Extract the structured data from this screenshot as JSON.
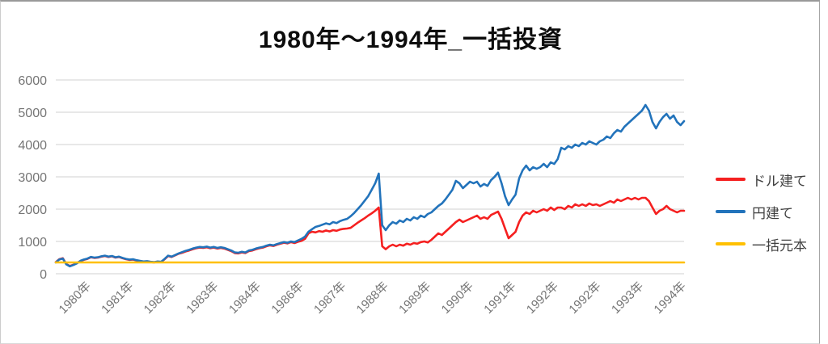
{
  "title": "1980年〜1994年_一括投資",
  "legend": [
    {
      "label": "ドル建て",
      "color": "#f52020"
    },
    {
      "label": "円建て",
      "color": "#2273bb"
    },
    {
      "label": "一括元本",
      "color": "#ffc000"
    }
  ],
  "colors": {
    "grid": "#d9d9d9",
    "axis_text": "#757575",
    "title_text": "#0d0d0d",
    "legend_text": "#404040"
  },
  "chart_data": {
    "type": "line",
    "title": "1980年〜1994年_一括投資",
    "ylim": [
      0,
      6000
    ],
    "y_ticks": [
      0,
      1000,
      2000,
      3000,
      4000,
      5000,
      6000
    ],
    "y_tick_labels": [
      "0",
      "1000",
      "2000",
      "3000",
      "4000",
      "5000",
      "6000"
    ],
    "x_tick_labels": [
      "1980年",
      "1981年",
      "1982年",
      "1983年",
      "1984年",
      "1986年",
      "1987年",
      "1988年",
      "1989年",
      "1990年",
      "1991年",
      "1992年",
      "1992年",
      "1993年",
      "1994年"
    ],
    "grid": true,
    "legend_position": "right",
    "series": [
      {
        "name": "ドル建て",
        "color": "#f52020",
        "values": [
          360,
          450,
          480,
          300,
          240,
          280,
          330,
          390,
          430,
          460,
          510,
          490,
          500,
          530,
          550,
          520,
          540,
          500,
          520,
          480,
          450,
          430,
          440,
          410,
          390,
          370,
          380,
          360,
          350,
          370,
          360,
          450,
          550,
          520,
          570,
          620,
          650,
          690,
          720,
          760,
          790,
          810,
          800,
          820,
          790,
          810,
          780,
          800,
          780,
          740,
          700,
          640,
          630,
          660,
          640,
          700,
          720,
          760,
          790,
          810,
          850,
          880,
          860,
          900,
          930,
          960,
          940,
          980,
          950,
          990,
          1020,
          1080,
          1250,
          1300,
          1280,
          1320,
          1300,
          1340,
          1310,
          1350,
          1330,
          1370,
          1390,
          1400,
          1420,
          1500,
          1580,
          1650,
          1720,
          1800,
          1870,
          1950,
          2050,
          850,
          760,
          850,
          900,
          850,
          900,
          870,
          930,
          900,
          950,
          930,
          980,
          1000,
          970,
          1050,
          1150,
          1250,
          1200,
          1300,
          1400,
          1500,
          1600,
          1675,
          1600,
          1650,
          1700,
          1750,
          1800,
          1700,
          1750,
          1700,
          1820,
          1870,
          1925,
          1700,
          1400,
          1100,
          1200,
          1300,
          1600,
          1800,
          1900,
          1850,
          1950,
          1900,
          1950,
          2000,
          1950,
          2050,
          1975,
          2050,
          2050,
          2000,
          2100,
          2050,
          2150,
          2100,
          2150,
          2100,
          2175,
          2125,
          2150,
          2100,
          2150,
          2200,
          2250,
          2200,
          2300,
          2250,
          2300,
          2350,
          2300,
          2350,
          2300,
          2350,
          2350,
          2250,
          2050,
          1850,
          1950,
          2000,
          2100,
          2000,
          1950,
          1900,
          1950,
          1950
        ]
      },
      {
        "name": "円建て",
        "color": "#2273bb",
        "values": [
          350,
          440,
          470,
          290,
          230,
          270,
          320,
          400,
          440,
          470,
          520,
          500,
          510,
          540,
          560,
          530,
          550,
          510,
          530,
          490,
          460,
          440,
          450,
          420,
          400,
          380,
          390,
          370,
          360,
          380,
          370,
          460,
          560,
          530,
          580,
          630,
          670,
          710,
          740,
          780,
          810,
          830,
          820,
          840,
          810,
          830,
          800,
          820,
          800,
          760,
          720,
          660,
          650,
          680,
          660,
          720,
          740,
          780,
          810,
          830,
          870,
          900,
          880,
          920,
          950,
          980,
          960,
          1000,
          980,
          1030,
          1080,
          1150,
          1300,
          1380,
          1450,
          1480,
          1520,
          1560,
          1530,
          1600,
          1570,
          1630,
          1670,
          1700,
          1780,
          1880,
          2000,
          2120,
          2260,
          2400,
          2600,
          2800,
          3100,
          1500,
          1350,
          1500,
          1600,
          1550,
          1650,
          1600,
          1700,
          1650,
          1750,
          1700,
          1800,
          1750,
          1850,
          1900,
          2000,
          2100,
          2175,
          2300,
          2450,
          2600,
          2875,
          2800,
          2650,
          2750,
          2850,
          2800,
          2850,
          2700,
          2780,
          2720,
          2900,
          3000,
          3130,
          2800,
          2400,
          2125,
          2300,
          2450,
          2950,
          3200,
          3350,
          3200,
          3300,
          3250,
          3300,
          3400,
          3300,
          3450,
          3400,
          3550,
          3900,
          3850,
          3950,
          3900,
          4000,
          3950,
          4050,
          4000,
          4100,
          4050,
          4000,
          4100,
          4150,
          4250,
          4200,
          4350,
          4450,
          4400,
          4550,
          4650,
          4750,
          4850,
          4950,
          5050,
          5225,
          5050,
          4700,
          4500,
          4700,
          4850,
          4950,
          4800,
          4900,
          4700,
          4600,
          4725
        ]
      },
      {
        "name": "一括元本",
        "color": "#ffc000",
        "constant": 350
      }
    ]
  }
}
